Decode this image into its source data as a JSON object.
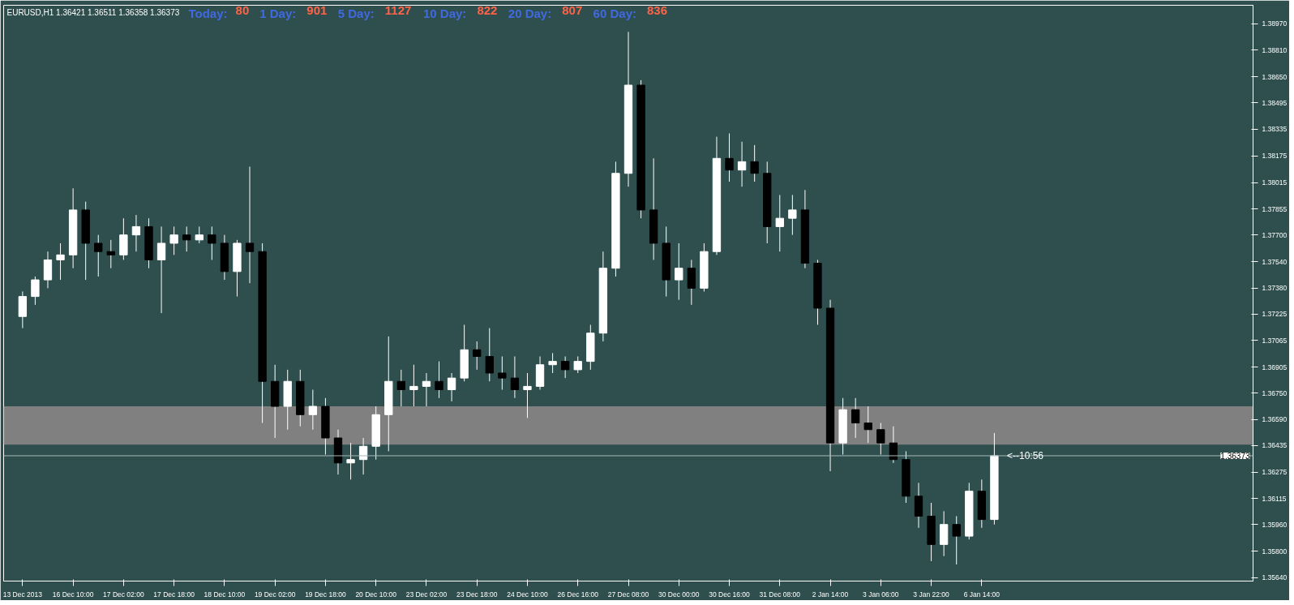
{
  "chart_data": {
    "type": "candlestick",
    "title": "EURUSD,H1  1.36421 1.36511 1.36358 1.36373",
    "annotations": [
      "Today: 80",
      "1 Day: 901",
      "5 Day: 1127",
      "10 Day: 822",
      "20 Day: 807",
      "60 Day: 836",
      "<--10:56"
    ],
    "categories": [
      "13 Dec 2013",
      null,
      null,
      null,
      "16 Dec 10:00",
      null,
      null,
      null,
      "17 Dec 02:00",
      null,
      null,
      null,
      "17 Dec 18:00",
      null,
      null,
      null,
      "18 Dec 10:00",
      null,
      null,
      null,
      "19 Dec 02:00",
      null,
      null,
      null,
      "19 Dec 18:00",
      null,
      null,
      null,
      "20 Dec 10:00",
      null,
      null,
      null,
      "23 Dec 02:00",
      null,
      null,
      null,
      "23 Dec 18:00",
      null,
      null,
      null,
      "24 Dec 10:00",
      null,
      null,
      null,
      "26 Dec 16:00",
      null,
      null,
      null,
      "27 Dec 08:00",
      null,
      null,
      null,
      "30 Dec 00:00",
      null,
      null,
      null,
      "30 Dec 16:00",
      null,
      null,
      null,
      "31 Dec 08:00",
      null,
      null,
      null,
      "2 Jan 14:00",
      null,
      null,
      null,
      "3 Jan 06:00",
      null,
      null,
      null,
      "3 Jan 22:00",
      null,
      null,
      null,
      "6 Jan 14:00",
      null,
      null,
      null,
      null,
      null,
      null,
      null,
      null,
      null,
      null,
      null,
      null,
      null,
      null,
      null,
      null,
      null,
      null,
      null,
      null,
      null
    ],
    "ohlc": [
      [
        1.3721,
        1.3736,
        1.3714,
        1.3733
      ],
      [
        1.3733,
        1.3745,
        1.3728,
        1.3743
      ],
      [
        1.3743,
        1.376,
        1.3738,
        1.3755
      ],
      [
        1.3755,
        1.3765,
        1.3743,
        1.3758
      ],
      [
        1.3758,
        1.3798,
        1.375,
        1.3785
      ],
      [
        1.3785,
        1.379,
        1.3743,
        1.3765
      ],
      [
        1.3765,
        1.377,
        1.3745,
        1.376
      ],
      [
        1.376,
        1.3767,
        1.375,
        1.3758
      ],
      [
        1.3758,
        1.378,
        1.3755,
        1.377
      ],
      [
        1.377,
        1.3782,
        1.376,
        1.3775
      ],
      [
        1.3775,
        1.378,
        1.375,
        1.3755
      ],
      [
        1.3755,
        1.3775,
        1.3723,
        1.3765
      ],
      [
        1.3765,
        1.3775,
        1.3758,
        1.377
      ],
      [
        1.377,
        1.3775,
        1.376,
        1.3767
      ],
      [
        1.3767,
        1.3775,
        1.3765,
        1.377
      ],
      [
        1.377,
        1.3775,
        1.3755,
        1.3765
      ],
      [
        1.3765,
        1.377,
        1.3743,
        1.3748
      ],
      [
        1.3748,
        1.3767,
        1.3733,
        1.3765
      ],
      [
        1.3765,
        1.3811,
        1.3741,
        1.376
      ],
      [
        1.376,
        1.3765,
        1.3657,
        1.3682
      ],
      [
        1.3682,
        1.3692,
        1.3648,
        1.3667
      ],
      [
        1.3667,
        1.3689,
        1.3653,
        1.3682
      ],
      [
        1.3682,
        1.3689,
        1.3655,
        1.3662
      ],
      [
        1.3662,
        1.3677,
        1.3653,
        1.3667
      ],
      [
        1.3667,
        1.3672,
        1.3638,
        1.3648
      ],
      [
        1.3648,
        1.3653,
        1.3626,
        1.3633
      ],
      [
        1.3633,
        1.3645,
        1.3623,
        1.3635
      ],
      [
        1.3635,
        1.3648,
        1.3626,
        1.3643
      ],
      [
        1.3643,
        1.3667,
        1.3635,
        1.3662
      ],
      [
        1.3662,
        1.3709,
        1.364,
        1.3682
      ],
      [
        1.3682,
        1.3689,
        1.3667,
        1.3677
      ],
      [
        1.3677,
        1.3692,
        1.3667,
        1.3679
      ],
      [
        1.3679,
        1.3687,
        1.3667,
        1.3682
      ],
      [
        1.3682,
        1.3694,
        1.3672,
        1.3677
      ],
      [
        1.3677,
        1.3687,
        1.367,
        1.3684
      ],
      [
        1.3684,
        1.3716,
        1.3682,
        1.3701
      ],
      [
        1.3701,
        1.3706,
        1.3689,
        1.3697
      ],
      [
        1.3697,
        1.3714,
        1.3682,
        1.3687
      ],
      [
        1.3687,
        1.3697,
        1.3677,
        1.3684
      ],
      [
        1.3684,
        1.3697,
        1.3672,
        1.3677
      ],
      [
        1.3677,
        1.3687,
        1.366,
        1.3679
      ],
      [
        1.3679,
        1.3697,
        1.3677,
        1.3692
      ],
      [
        1.3692,
        1.3699,
        1.3687,
        1.3694
      ],
      [
        1.3694,
        1.3697,
        1.3684,
        1.3689
      ],
      [
        1.3689,
        1.3697,
        1.3687,
        1.3694
      ],
      [
        1.3694,
        1.3716,
        1.3689,
        1.3711
      ],
      [
        1.3711,
        1.376,
        1.3706,
        1.375
      ],
      [
        1.375,
        1.3814,
        1.3745,
        1.3807
      ],
      [
        1.3807,
        1.3892,
        1.3799,
        1.386
      ],
      [
        1.386,
        1.3863,
        1.378,
        1.3785
      ],
      [
        1.3785,
        1.3816,
        1.3755,
        1.3765
      ],
      [
        1.3765,
        1.3775,
        1.3733,
        1.3743
      ],
      [
        1.3743,
        1.3765,
        1.3731,
        1.375
      ],
      [
        1.375,
        1.3755,
        1.3728,
        1.3738
      ],
      [
        1.3738,
        1.3765,
        1.3736,
        1.376
      ],
      [
        1.376,
        1.3829,
        1.3758,
        1.3816
      ],
      [
        1.3816,
        1.3831,
        1.3802,
        1.3809
      ],
      [
        1.3809,
        1.3826,
        1.3799,
        1.3814
      ],
      [
        1.3814,
        1.3824,
        1.3802,
        1.3807
      ],
      [
        1.3807,
        1.3814,
        1.3765,
        1.3775
      ],
      [
        1.3775,
        1.3794,
        1.376,
        1.378
      ],
      [
        1.378,
        1.3794,
        1.377,
        1.3785
      ],
      [
        1.3785,
        1.3797,
        1.375,
        1.3753
      ],
      [
        1.3753,
        1.3755,
        1.3716,
        1.3726
      ],
      [
        1.3726,
        1.3731,
        1.3628,
        1.3645
      ],
      [
        1.3645,
        1.3672,
        1.3638,
        1.3665
      ],
      [
        1.3665,
        1.3672,
        1.3648,
        1.3657
      ],
      [
        1.3657,
        1.3667,
        1.3645,
        1.3653
      ],
      [
        1.3653,
        1.3657,
        1.3638,
        1.3645
      ],
      [
        1.3645,
        1.3655,
        1.3633,
        1.3635
      ],
      [
        1.3635,
        1.364,
        1.3609,
        1.3613
      ],
      [
        1.3613,
        1.3621,
        1.3594,
        1.3601
      ],
      [
        1.3601,
        1.3609,
        1.3574,
        1.3584
      ],
      [
        1.3584,
        1.3604,
        1.3577,
        1.3596
      ],
      [
        1.3596,
        1.3601,
        1.3572,
        1.3589
      ],
      [
        1.3589,
        1.3621,
        1.3587,
        1.3616
      ],
      [
        1.3616,
        1.3623,
        1.3594,
        1.3599
      ],
      [
        1.3599,
        1.3651,
        1.3596,
        1.36373
      ],
      null,
      null,
      null,
      null,
      null,
      null,
      null,
      null,
      null,
      null,
      null,
      null,
      null,
      null,
      null,
      null,
      null,
      null,
      null,
      null
    ],
    "colors": [
      "#ffffff",
      "#ffffff",
      "#ffffff",
      "#ffffff",
      "#ffffff",
      "#000000",
      "#000000",
      "#000000",
      "#ffffff",
      "#ffffff",
      "#000000",
      "#ffffff",
      "#ffffff",
      "#000000",
      "#ffffff",
      "#000000",
      "#000000",
      "#ffffff",
      "#000000",
      "#000000",
      "#000000",
      "#ffffff",
      "#000000",
      "#ffffff",
      "#000000",
      "#000000",
      "#ffffff",
      "#ffffff",
      "#ffffff",
      "#ffffff",
      "#000000",
      "#ffffff",
      "#ffffff",
      "#000000",
      "#ffffff",
      "#ffffff",
      "#000000",
      "#000000",
      "#000000",
      "#000000",
      "#ffffff",
      "#ffffff",
      "#ffffff",
      "#000000",
      "#ffffff",
      "#ffffff",
      "#ffffff",
      "#ffffff",
      "#ffffff",
      "#000000",
      "#000000",
      "#000000",
      "#ffffff",
      "#000000",
      "#ffffff",
      "#ffffff",
      "#000000",
      "#ffffff",
      "#000000",
      "#000000",
      "#ffffff",
      "#ffffff",
      "#000000",
      "#000000",
      "#000000",
      "#ffffff",
      "#000000",
      "#000000",
      "#000000",
      "#000000",
      "#000000",
      "#000000",
      "#000000",
      "#ffffff",
      "#000000",
      "#ffffff",
      "#000000",
      "#ffffff",
      null,
      null,
      null,
      null,
      null,
      null,
      null,
      null,
      null,
      null,
      null,
      null,
      null,
      null,
      null,
      null,
      null,
      null,
      null,
      null
    ],
    "ylim": [
      1.3562,
      1.3908
    ],
    "yticks": [
      {
        "value": 1.3564,
        "label": "1.35640"
      },
      {
        "value": 1.358,
        "label": "1.35800"
      },
      {
        "value": 1.3596,
        "label": "1.35960"
      },
      1.36115,
      1.36275,
      1.36435,
      {
        "value": 1.3659,
        "label": "1.36590"
      },
      {
        "value": 1.3675,
        "label": "1.36750"
      },
      1.36905,
      1.37065,
      1.37225,
      {
        "value": 1.3738,
        "label": "1.37380"
      },
      {
        "value": 1.3754,
        "label": "1.37540"
      },
      {
        "value": 1.377,
        "label": "1.37700"
      },
      1.37855,
      1.38015,
      1.38175,
      1.38335,
      1.38495,
      {
        "value": 1.3865,
        "label": "1.38650"
      },
      {
        "value": 1.3881,
        "label": "1.38810"
      },
      {
        "value": 1.3897,
        "label": "1.38970"
      }
    ],
    "ref_lines": [
      {
        "axis": "y",
        "value": 1.36373,
        "label": "1.36373",
        "color": "#a8b8b8"
      }
    ],
    "bands": [
      {
        "axis": "y",
        "from": 1.3644,
        "to": 1.3667,
        "color": "#808080"
      }
    ],
    "grid": false
  }
}
